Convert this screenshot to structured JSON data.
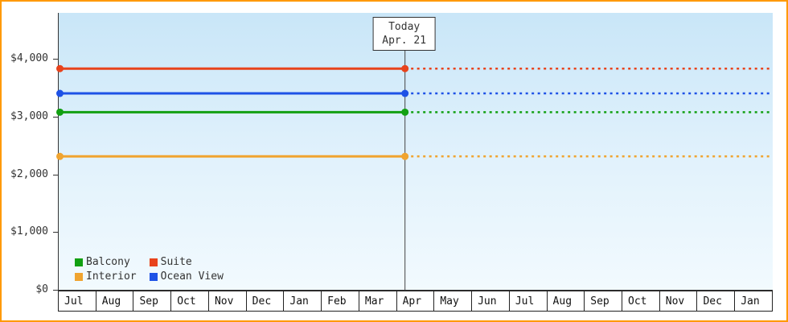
{
  "chart_data": {
    "type": "line",
    "title": "",
    "x_categories": [
      "Jul",
      "Aug",
      "Sep",
      "Oct",
      "Nov",
      "Dec",
      "Jan",
      "Feb",
      "Mar",
      "Apr",
      "May",
      "Jun",
      "Jul",
      "Aug",
      "Sep",
      "Oct",
      "Nov",
      "Dec",
      "Jan"
    ],
    "y_tick_labels": [
      "$0",
      "$1,000",
      "$2,000",
      "$3,000",
      "$4,000"
    ],
    "y_tick_values": [
      0,
      1000,
      2000,
      3000,
      4000
    ],
    "ylim": [
      0,
      4000
    ],
    "grid": "off",
    "legend_position": "bottom-left",
    "series": [
      {
        "name": "Balcony",
        "value": 3075,
        "color": "#12a012"
      },
      {
        "name": "Suite",
        "value": 3830,
        "color": "#e8431c"
      },
      {
        "name": "Interior",
        "value": 2310,
        "color": "#f0a430"
      },
      {
        "name": "Ocean View",
        "value": 3400,
        "color": "#1e52e6"
      }
    ],
    "line_style": {
      "past": "solid",
      "future": "dotted"
    },
    "today": {
      "line1": "Today",
      "line2": "Apr. 21",
      "position_fraction": 0.485
    }
  },
  "frame": {
    "border_color": "#ff9900"
  }
}
